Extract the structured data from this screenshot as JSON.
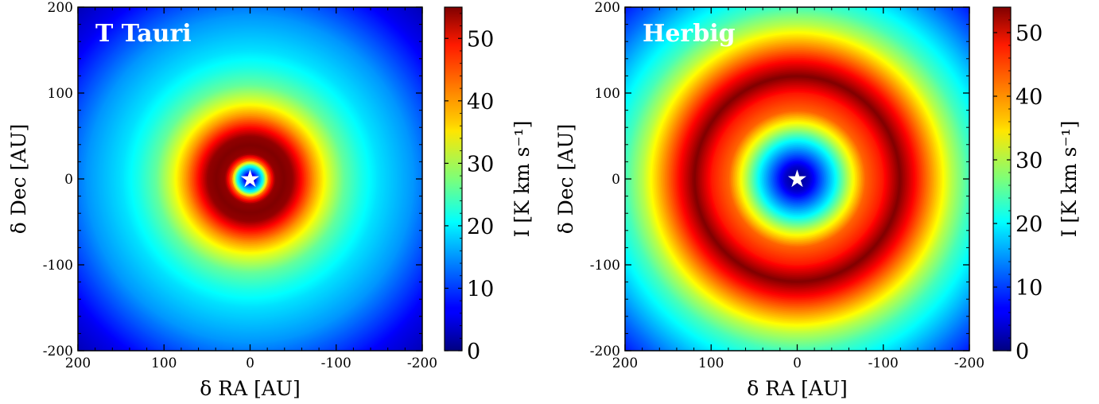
{
  "chart_data": [
    {
      "type": "heatmap",
      "title": "T Tauri",
      "xlabel": "δ RA [AU]",
      "ylabel": "δ Dec [AU]",
      "xlim": [
        200,
        -200
      ],
      "ylim": [
        -200,
        200
      ],
      "xticks": [
        "200",
        "100",
        "0",
        "-100",
        "-200"
      ],
      "yticks": [
        "200",
        "100",
        "0",
        "-100",
        "-200"
      ],
      "colorbar": {
        "label": "I [K km s⁻¹]",
        "range": [
          0,
          55
        ],
        "ticks": [
          "0",
          "10",
          "20",
          "30",
          "40",
          "50"
        ],
        "colormap": "jet"
      },
      "radial_profile": {
        "r_au": [
          0,
          4,
          10,
          16,
          22,
          30,
          40,
          50,
          60,
          75,
          90,
          110,
          130,
          150,
          170,
          190,
          210,
          230,
          250,
          283
        ],
        "intensity": [
          0,
          2,
          12,
          22,
          42,
          54,
          55,
          54,
          48,
          40,
          33,
          26,
          22,
          19,
          17,
          15,
          12,
          9,
          6,
          3
        ]
      },
      "star_marker": {
        "x_au": 0,
        "y_au": 0,
        "symbol": "★"
      },
      "grid": false
    },
    {
      "type": "heatmap",
      "title": "Herbig",
      "xlabel": "δ RA [AU]",
      "ylabel": "δ Dec [AU]",
      "xlim": [
        200,
        -200
      ],
      "ylim": [
        -200,
        200
      ],
      "xticks": [
        "200",
        "100",
        "0",
        "-100",
        "-200"
      ],
      "yticks": [
        "200",
        "100",
        "0",
        "-100",
        "-200"
      ],
      "colorbar": {
        "label": "I [K km s⁻¹]",
        "range": [
          0,
          54
        ],
        "ticks": [
          "0",
          "10",
          "20",
          "30",
          "40",
          "50"
        ],
        "colormap": "jet"
      },
      "radial_profile": {
        "r_au": [
          0,
          15,
          30,
          45,
          60,
          70,
          80,
          90,
          100,
          110,
          120,
          130,
          140,
          150,
          165,
          180,
          200,
          230,
          260,
          283
        ],
        "intensity": [
          0,
          4,
          12,
          20,
          30,
          36,
          42,
          44,
          46,
          50,
          54,
          50,
          46,
          42,
          36,
          30,
          24,
          18,
          12,
          8
        ]
      },
      "star_marker": {
        "x_au": 0,
        "y_au": 0,
        "symbol": "★"
      },
      "grid": false
    }
  ]
}
